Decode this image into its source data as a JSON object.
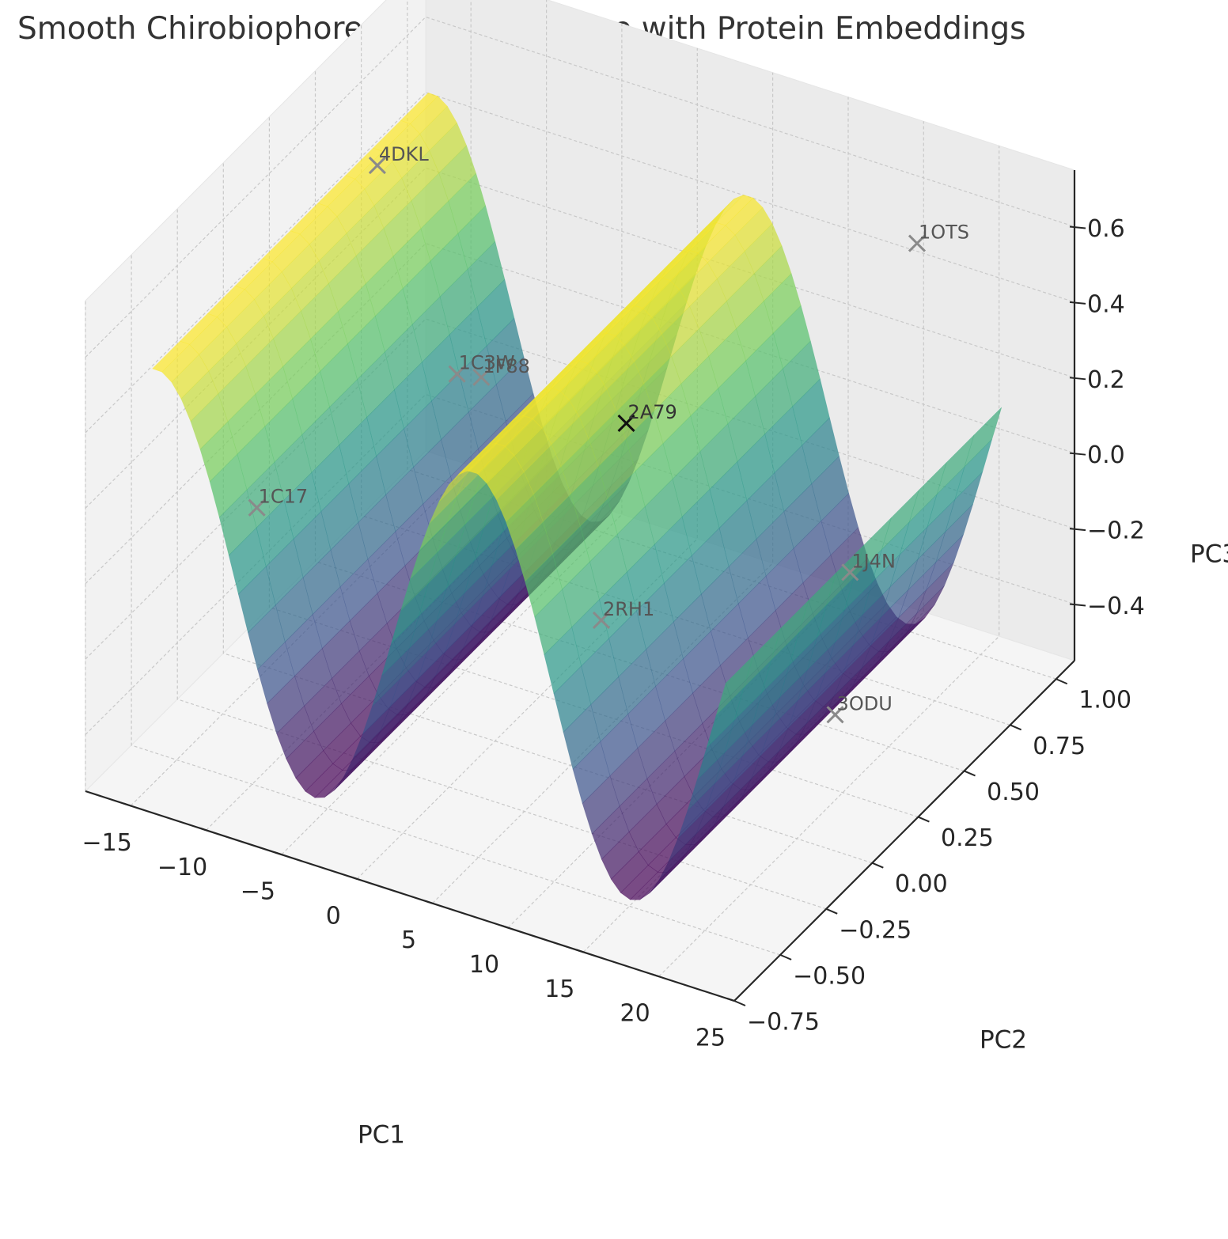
{
  "chart_data": {
    "type": "surface3d",
    "title": "Smooth Chirobiophore Manifold Surface with Protein Embeddings",
    "xlabel": "PC1",
    "ylabel": "PC2",
    "zlabel": "PC3",
    "xlim": [
      -18,
      25
    ],
    "ylim": [
      -0.75,
      1.1
    ],
    "zlim": [
      -0.55,
      0.75
    ],
    "x_ticks": [
      -15,
      -10,
      -5,
      0,
      5,
      10,
      15,
      20,
      25
    ],
    "x_tick_labels": [
      "−15",
      "−10",
      "−5",
      "0",
      "5",
      "10",
      "15",
      "20",
      "25"
    ],
    "y_ticks": [
      -0.75,
      -0.5,
      -0.25,
      0.0,
      0.25,
      0.5,
      0.75,
      1.0
    ],
    "y_tick_labels": [
      "−0.75",
      "−0.50",
      "−0.25",
      "0.00",
      "0.25",
      "0.50",
      "0.75",
      "1.00"
    ],
    "z_ticks": [
      -0.4,
      -0.2,
      0.0,
      0.2,
      0.4,
      0.6
    ],
    "z_tick_labels": [
      "−0.4",
      "−0.2",
      "0.0",
      "0.2",
      "0.4",
      "0.6"
    ],
    "surface": {
      "function": "z = 0.5 * sin(0.3 * x)",
      "x_range": [
        -16,
        22
      ],
      "y_range": [
        -0.55,
        0.95
      ],
      "colormap": "viridis",
      "alpha": 0.7,
      "stops": [
        "#440154",
        "#3b528b",
        "#21918c",
        "#5ec962",
        "#fde725"
      ]
    },
    "points": [
      {
        "label": "4DKL",
        "x": -14.5,
        "y": 0.55,
        "z": 0.52
      },
      {
        "label": "1OTS",
        "x": 17,
        "y": 0.9,
        "z": 0.55
      },
      {
        "label": "1C3W",
        "x": -8,
        "y": 0.45,
        "z": 0.1
      },
      {
        "label": "1F88",
        "x": -7,
        "y": 0.5,
        "z": 0.08
      },
      {
        "label": "2A79",
        "x": 2,
        "y": 0.55,
        "z": 0.05
      },
      {
        "label": "1C17",
        "x": -17,
        "y": 0.1,
        "z": -0.2
      },
      {
        "label": "2RH1",
        "x": 4,
        "y": 0.25,
        "z": -0.3
      },
      {
        "label": "1J4N",
        "x": 15,
        "y": 0.7,
        "z": -0.25
      },
      {
        "label": "3ODU",
        "x": 19.5,
        "y": 0.25,
        "z": -0.35
      }
    ],
    "point_marker": "x"
  }
}
